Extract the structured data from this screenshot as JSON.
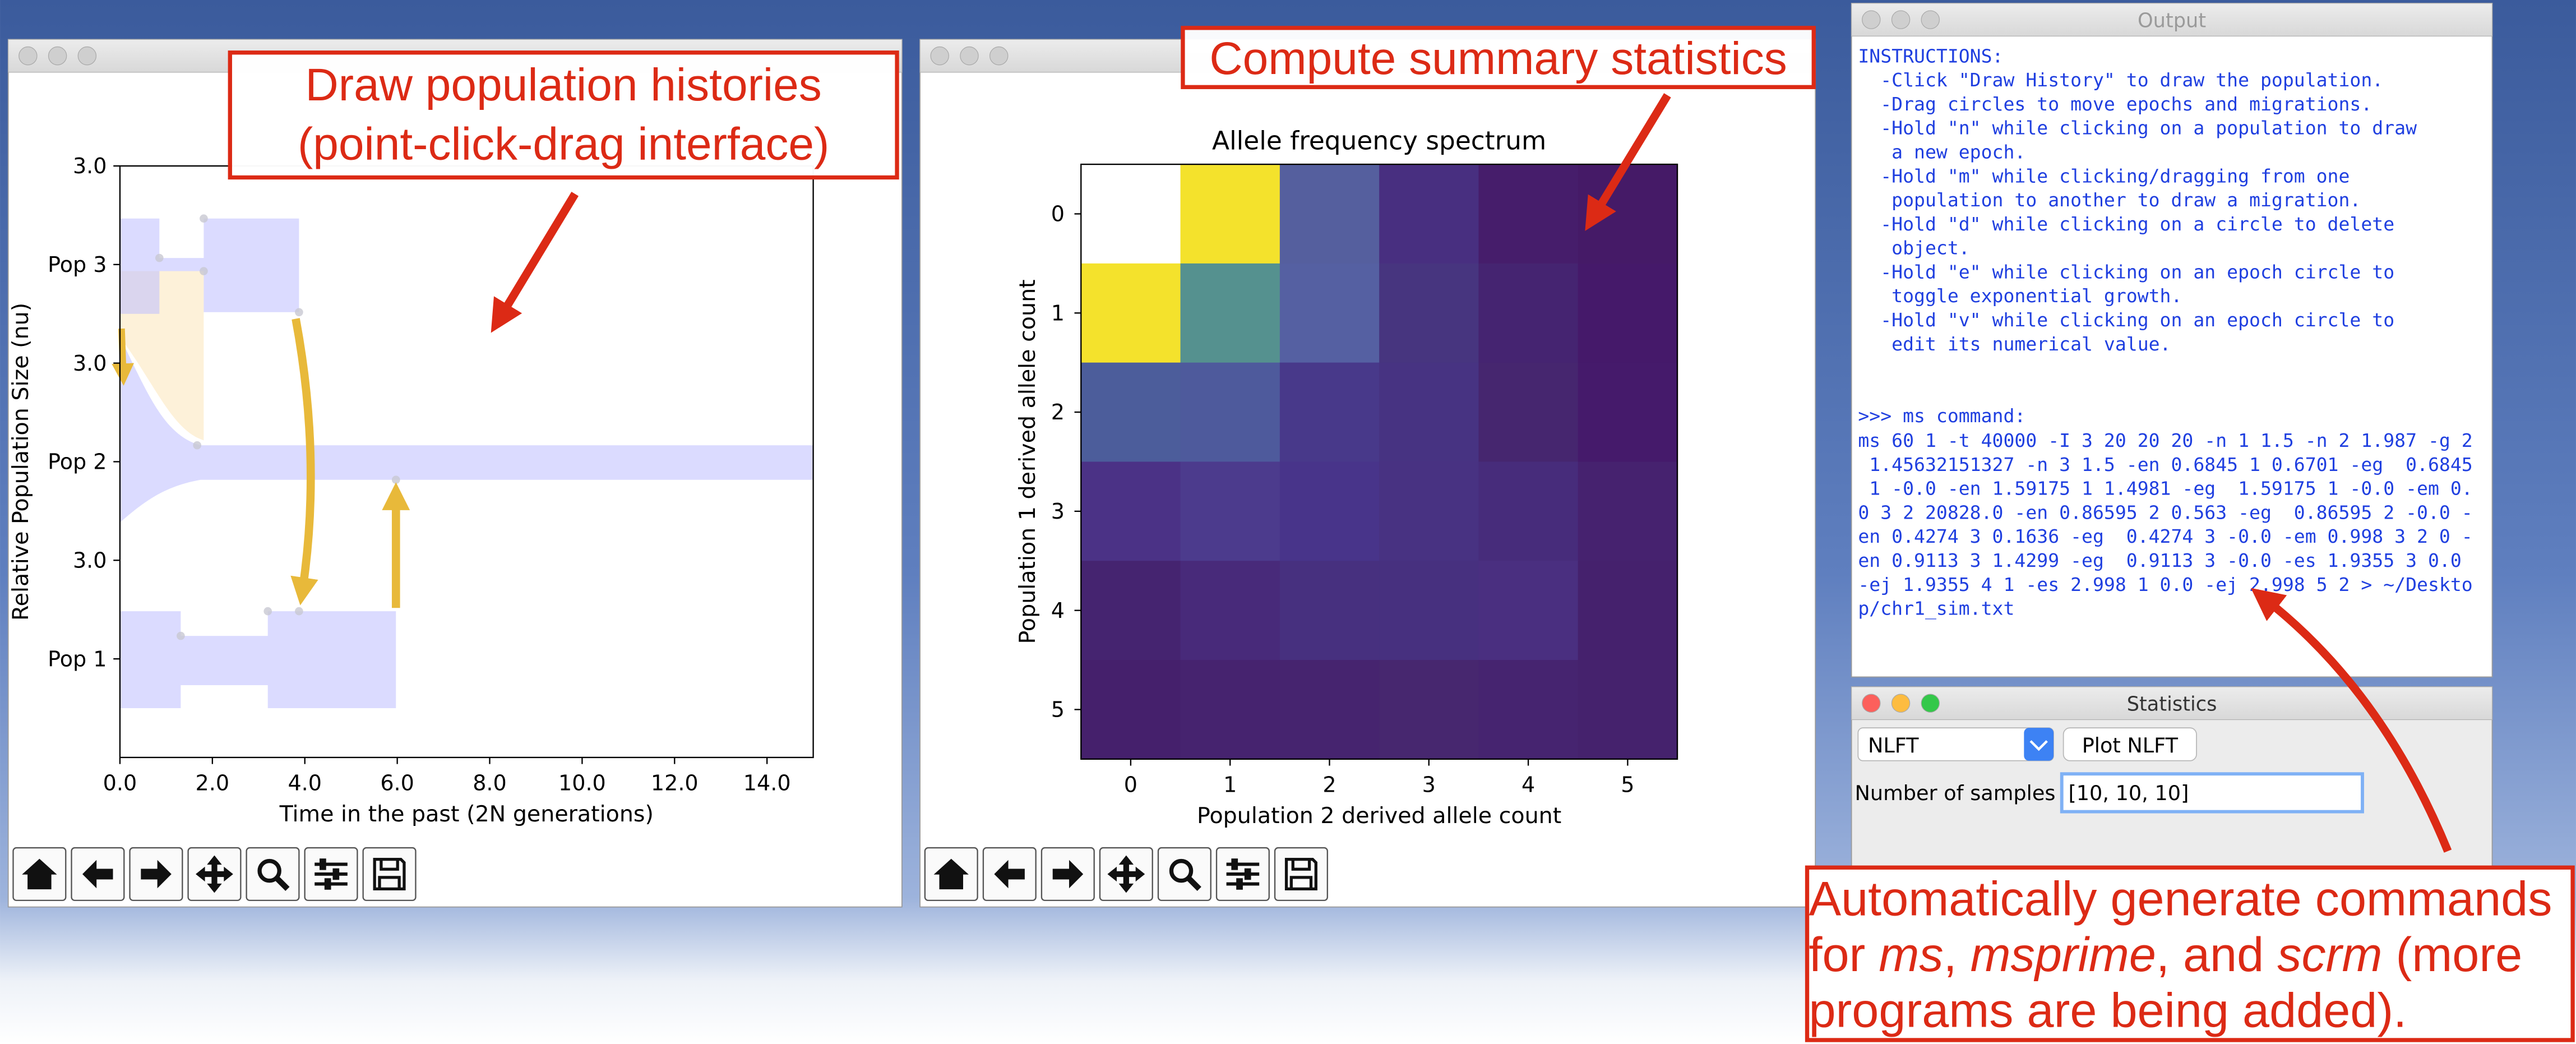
{
  "population_plot": {
    "y_tick_labels": [
      "3.0",
      "Pop 3",
      "3.0",
      "Pop 2",
      "3.0",
      "Pop 1"
    ],
    "y_label": "Relative Population Size (nu)",
    "x_label": "Time in the past (2N generations)",
    "xlim": [
      0,
      15
    ],
    "xticks": [
      {
        "value": 0,
        "label": "0.0"
      },
      {
        "value": 2,
        "label": "2.0"
      },
      {
        "value": 4,
        "label": "4.0"
      },
      {
        "value": 6,
        "label": "6.0"
      },
      {
        "value": 8,
        "label": "8.0"
      },
      {
        "value": 10,
        "label": "10.0"
      },
      {
        "value": 12,
        "label": "12.0"
      },
      {
        "value": 14,
        "label": "14.0"
      }
    ]
  },
  "afs_plot": {
    "title": "Allele frequency spectrum",
    "x_label": "Population 2 derived allele count",
    "y_label": "Population 1 derived allele count",
    "xlim": [
      -0.5,
      5.5
    ],
    "ylim": [
      -0.5,
      5.5
    ],
    "xticks": [
      0,
      1,
      2,
      3,
      4,
      5
    ],
    "yticks": [
      0,
      1,
      2,
      3,
      4,
      5
    ],
    "cells": [
      [
        "#ffffff",
        "#f4e22c",
        "#555f9e",
        "#482f80",
        "#461d6b",
        "#451a67"
      ],
      [
        "#f4e22c",
        "#55918f",
        "#5560a2",
        "#47357f",
        "#452471",
        "#45196a"
      ],
      [
        "#4c5d9b",
        "#4e5a9c",
        "#48398a",
        "#473382",
        "#46266f",
        "#451a6b"
      ],
      [
        "#4b3286",
        "#4c3b8d",
        "#48348a",
        "#483282",
        "#472c7b",
        "#46226f"
      ],
      [
        "#452470",
        "#482a7a",
        "#47307f",
        "#47307f",
        "#4a2f80",
        "#45216d"
      ],
      [
        "#45206c",
        "#46236f",
        "#46246f",
        "#47276f",
        "#462470",
        "#45226d"
      ]
    ]
  },
  "output_window": {
    "title": "Output",
    "instructions": [
      "INSTRUCTIONS:",
      "  -Click \"Draw History\" to draw the population.",
      "  -Drag circles to move epochs and migrations.",
      "  -Hold \"n\" while clicking on a population to draw",
      "   a new epoch.",
      "  -Hold \"m\" while clicking/dragging from one",
      "   population to another to draw a migration.",
      "  -Hold \"d\" while clicking on a circle to delete",
      "   object.",
      "  -Hold \"e\" while clicking on an epoch circle to",
      "   toggle exponential growth.",
      "  -Hold \"v\" while clicking on an epoch circle to",
      "   edit its numerical value."
    ],
    "command_header": ">>> ms command:",
    "command": [
      "ms 60 1 -t 40000 -I 3 20 20 20 -n 1 1.5 -n 2 1.987 -g 2",
      " 1.45632151327 -n 3 1.5 -en 0.6845 1 0.6701 -eg  0.6845",
      " 1 -0.0 -en 1.59175 1 1.4981 -eg  1.59175 1 -0.0 -em 0.",
      "0 3 2 20828.0 -en 0.86595 2 0.563 -eg  0.86595 2 -0.0 -",
      "en 0.4274 3 0.1636 -eg  0.4274 3 -0.0 -em 0.998 3 2 0 -",
      "en 0.9113 3 1.4299 -eg  0.9113 3 -0.0 -es 1.9355 3 0.0",
      "-ej 1.9355 4 1 -es 2.998 1 0.0 -ej 2.998 5 2 > ~/Deskto",
      "p/chr1_sim.txt"
    ]
  },
  "statistics_window": {
    "title": "Statistics",
    "statistic": "NLFT",
    "plot_button": "Plot NLFT",
    "samples_label": "Number of samples",
    "samples_value": "[10, 10, 10]"
  },
  "annotations": [
    {
      "lines": [
        [
          {
            "text": "Draw population histories"
          }
        ],
        [
          {
            "text": "(point-click-drag interface)"
          }
        ]
      ]
    },
    {
      "lines": [
        [
          {
            "text": "Compute summary statistics"
          }
        ]
      ]
    },
    {
      "lines": [
        [
          {
            "text": "Automatically generate commands"
          }
        ],
        [
          {
            "text": "for "
          },
          {
            "text": "ms",
            "italic": true
          },
          {
            "text": ", "
          },
          {
            "text": "msprime",
            "italic": true
          },
          {
            "text": ", and "
          },
          {
            "text": "scrm",
            "italic": true
          },
          {
            "text": " (more"
          }
        ],
        [
          {
            "text": "programs are being added)."
          }
        ]
      ]
    }
  ]
}
